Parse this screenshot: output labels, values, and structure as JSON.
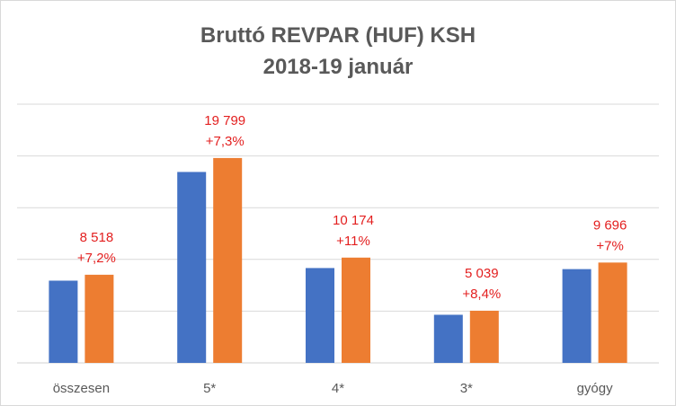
{
  "chart_data": {
    "type": "bar",
    "title_lines": [
      "Bruttó REVPAR (HUF) KSH",
      "2018-19 január"
    ],
    "categories": [
      "összesen",
      "5*",
      "4*",
      "3*",
      "gyógy"
    ],
    "series": [
      {
        "values": [
          7946,
          18451,
          9166,
          4649,
          9062
        ],
        "color": "#4472c4"
      },
      {
        "values": [
          8518,
          19799,
          10174,
          5039,
          9696
        ],
        "color": "#ed7d31"
      }
    ],
    "data_labels": [
      {
        "value": "8 518",
        "change": "+7,2%"
      },
      {
        "value": "19 799",
        "change": "+7,3%"
      },
      {
        "value": "10 174",
        "change": "+11%"
      },
      {
        "value": "5 039",
        "change": "+8,4%"
      },
      {
        "value": "9 696",
        "change": "+7%"
      }
    ],
    "ylim": [
      0,
      25000
    ],
    "grid": true,
    "legend": "none",
    "label_color": "#e31f1f"
  }
}
